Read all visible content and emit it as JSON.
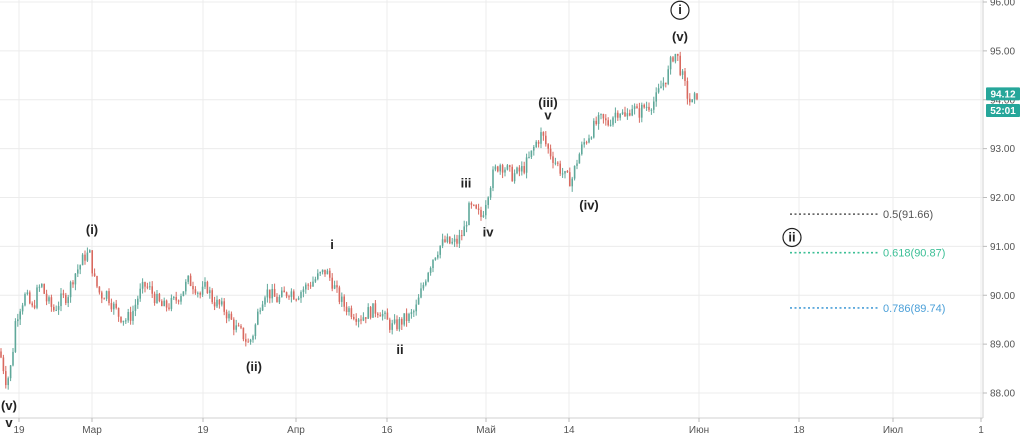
{
  "chart_data": {
    "type": "candlestick",
    "x_tick_labels": [
      "19",
      "Мар",
      "19",
      "Апр",
      "16",
      "Май",
      "14",
      "Июн",
      "18",
      "Июл",
      "1"
    ],
    "y_tick_labels": [
      "88.00",
      "89.00",
      "90.00",
      "91.00",
      "92.00",
      "93.00",
      "94.00",
      "95.00",
      "96.00"
    ],
    "ylim": [
      87.5,
      96.0
    ],
    "colors": {
      "up": "#5fa89a",
      "down": "#d9695f",
      "grid": "#ececec",
      "axis_text": "#555555",
      "price_tag": "#26a69a"
    },
    "price_path": [
      [
        0,
        88.9
      ],
      [
        4,
        88.7
      ],
      [
        9,
        88.2
      ],
      [
        14,
        88.6
      ],
      [
        18,
        89.5
      ],
      [
        23,
        89.8
      ],
      [
        28,
        90.0
      ],
      [
        35,
        89.7
      ],
      [
        40,
        90.1
      ],
      [
        44,
        90.2
      ],
      [
        49,
        89.9
      ],
      [
        56,
        89.7
      ],
      [
        63,
        89.9
      ],
      [
        70,
        90.0
      ],
      [
        76,
        90.4
      ],
      [
        82,
        90.6
      ],
      [
        87,
        90.8
      ],
      [
        92,
        90.85
      ],
      [
        97,
        90.3
      ],
      [
        103,
        90.0
      ],
      [
        109,
        90.05
      ],
      [
        115,
        89.8
      ],
      [
        121,
        89.6
      ],
      [
        128,
        89.5
      ],
      [
        134,
        89.6
      ],
      [
        141,
        90.0
      ],
      [
        147,
        90.2
      ],
      [
        153,
        90.1
      ],
      [
        159,
        89.9
      ],
      [
        165,
        89.75
      ],
      [
        172,
        89.8
      ],
      [
        178,
        89.9
      ],
      [
        185,
        90.1
      ],
      [
        191,
        90.3
      ],
      [
        197,
        90.2
      ],
      [
        203,
        90.0
      ],
      [
        209,
        90.2
      ],
      [
        215,
        89.9
      ],
      [
        221,
        89.8
      ],
      [
        227,
        89.7
      ],
      [
        233,
        89.5
      ],
      [
        239,
        89.3
      ],
      [
        245,
        89.2
      ],
      [
        251,
        89.0
      ],
      [
        257,
        89.3
      ],
      [
        262,
        89.8
      ],
      [
        268,
        90.1
      ],
      [
        274,
        90.0
      ],
      [
        280,
        89.9
      ],
      [
        286,
        90.0
      ],
      [
        292,
        90.1
      ],
      [
        298,
        90.0
      ],
      [
        304,
        90.1
      ],
      [
        310,
        90.2
      ],
      [
        316,
        90.3
      ],
      [
        322,
        90.4
      ],
      [
        328,
        90.5
      ],
      [
        334,
        90.3
      ],
      [
        340,
        90.0
      ],
      [
        346,
        89.8
      ],
      [
        352,
        89.7
      ],
      [
        358,
        89.6
      ],
      [
        364,
        89.55
      ],
      [
        370,
        89.65
      ],
      [
        376,
        89.7
      ],
      [
        382,
        89.7
      ],
      [
        388,
        89.5
      ],
      [
        394,
        89.35
      ],
      [
        400,
        89.4
      ],
      [
        406,
        89.5
      ],
      [
        412,
        89.55
      ],
      [
        418,
        89.7
      ],
      [
        424,
        90.1
      ],
      [
        430,
        90.5
      ],
      [
        436,
        90.8
      ],
      [
        442,
        91.0
      ],
      [
        448,
        91.1
      ],
      [
        454,
        91.05
      ],
      [
        460,
        91.1
      ],
      [
        466,
        91.3
      ],
      [
        472,
        91.8
      ],
      [
        478,
        91.7
      ],
      [
        484,
        91.6
      ],
      [
        490,
        92.1
      ],
      [
        496,
        92.5
      ],
      [
        502,
        92.7
      ],
      [
        508,
        92.6
      ],
      [
        514,
        92.45
      ],
      [
        520,
        92.5
      ],
      [
        526,
        92.6
      ],
      [
        532,
        92.8
      ],
      [
        538,
        93.1
      ],
      [
        544,
        93.3
      ],
      [
        550,
        93.0
      ],
      [
        556,
        92.8
      ],
      [
        562,
        92.6
      ],
      [
        568,
        92.4
      ],
      [
        574,
        92.35
      ],
      [
        580,
        92.8
      ],
      [
        586,
        93.1
      ],
      [
        592,
        93.3
      ],
      [
        598,
        93.5
      ],
      [
        604,
        93.6
      ],
      [
        610,
        93.5
      ],
      [
        616,
        93.7
      ],
      [
        622,
        93.8
      ],
      [
        628,
        93.6
      ],
      [
        634,
        93.9
      ],
      [
        640,
        93.7
      ],
      [
        646,
        93.85
      ],
      [
        652,
        93.9
      ],
      [
        658,
        94.0
      ],
      [
        664,
        94.3
      ],
      [
        670,
        94.5
      ],
      [
        675,
        94.9
      ],
      [
        679,
        94.95
      ],
      [
        683,
        94.6
      ],
      [
        687,
        94.3
      ],
      [
        691,
        94.0
      ],
      [
        695,
        93.9
      ],
      [
        699,
        94.12
      ]
    ],
    "wave_labels": [
      {
        "text": "(v)",
        "x": 9,
        "y": 87.65
      },
      {
        "text": "v",
        "x": 9,
        "y": 87.3
      },
      {
        "text": "(i)",
        "x": 92,
        "y": 91.25
      },
      {
        "text": "(ii)",
        "x": 254,
        "y": 88.45
      },
      {
        "text": "i",
        "x": 332,
        "y": 90.95
      },
      {
        "text": "ii",
        "x": 400,
        "y": 88.8
      },
      {
        "text": "iii",
        "x": 466,
        "y": 92.2
      },
      {
        "text": "iv",
        "x": 488,
        "y": 91.2
      },
      {
        "text": "(iii)",
        "x": 548,
        "y": 93.85
      },
      {
        "text": "v",
        "x": 548,
        "y": 93.6
      },
      {
        "text": "(iv)",
        "x": 589,
        "y": 91.75
      },
      {
        "text": "(v)",
        "x": 680,
        "y": 95.2
      },
      {
        "text": "i",
        "x": 680,
        "y": 95.75,
        "circled": true
      },
      {
        "text": "ii",
        "x": 792,
        "y": 91.1,
        "circled": true
      }
    ],
    "fib_levels": [
      {
        "label": "0.5(91.66)",
        "value": 91.66,
        "color": "#555555"
      },
      {
        "label": "0.618(90.87)",
        "value": 90.87,
        "color": "#3cbf96"
      },
      {
        "label": "0.786(89.74)",
        "value": 89.74,
        "color": "#4a9fd8"
      }
    ],
    "price_tags": [
      {
        "text": "94.12",
        "value": 94.12
      },
      {
        "text": "52:01",
        "value": 93.78
      }
    ]
  }
}
